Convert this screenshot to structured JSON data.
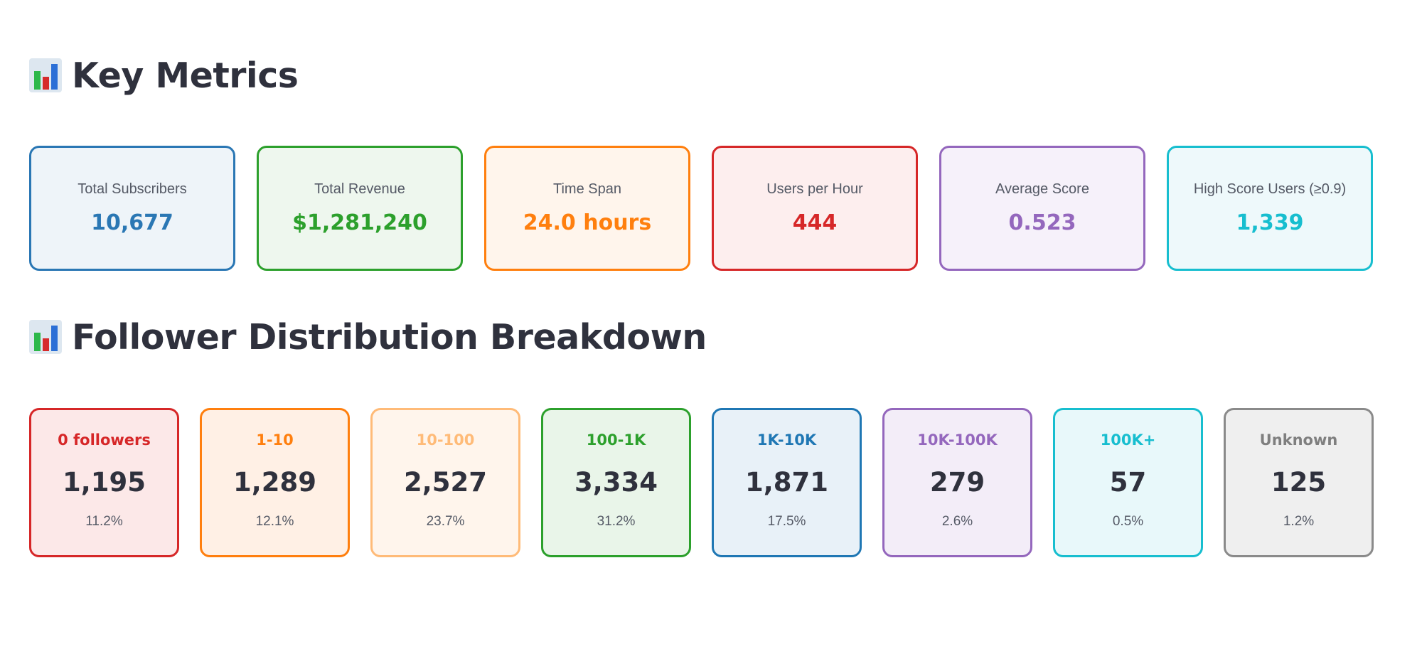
{
  "sections": {
    "key_metrics_title": "Key Metrics",
    "follower_title": "Follower Distribution Breakdown",
    "icon": "bar-chart-icon"
  },
  "metrics": [
    {
      "label": "Total Subscribers",
      "value": "10,677",
      "color": "#2a77b4",
      "bg": "#eef4f9"
    },
    {
      "label": "Total Revenue",
      "value": "$1,281,240",
      "color": "#2ca02c",
      "bg": "#eef7ee"
    },
    {
      "label": "Time Span",
      "value": "24.0 hours",
      "color": "#ff7f0e",
      "bg": "#fff5ec"
    },
    {
      "label": "Users per Hour",
      "value": "444",
      "color": "#d62728",
      "bg": "#fdeeee"
    },
    {
      "label": "Average Score",
      "value": "0.523",
      "color": "#9467bd",
      "bg": "#f6f1fa"
    },
    {
      "label": "High Score Users (≥0.9)",
      "value": "1,339",
      "color": "#17becf",
      "bg": "#eef9fb"
    }
  ],
  "followers": [
    {
      "label": "0 followers",
      "count": "1,195",
      "pct": "11.2%",
      "color": "#d62728",
      "border": "#d62728",
      "bg": "#fce8e8"
    },
    {
      "label": "1-10",
      "count": "1,289",
      "pct": "12.1%",
      "color": "#ff7f0e",
      "border": "#ff7f0e",
      "bg": "#fff0e5"
    },
    {
      "label": "10-100",
      "count": "2,527",
      "pct": "23.7%",
      "color": "#ffbb78",
      "border": "#ffbb78",
      "bg": "#fff5ec"
    },
    {
      "label": "100-1K",
      "count": "3,334",
      "pct": "31.2%",
      "color": "#2ca02c",
      "border": "#2ca02c",
      "bg": "#e9f5e9"
    },
    {
      "label": "1K-10K",
      "count": "1,871",
      "pct": "17.5%",
      "color": "#1f77b4",
      "border": "#1f77b4",
      "bg": "#e8f1f8"
    },
    {
      "label": "10K-100K",
      "count": "279",
      "pct": "2.6%",
      "color": "#9467bd",
      "border": "#9467bd",
      "bg": "#f3edf8"
    },
    {
      "label": "100K+",
      "count": "57",
      "pct": "0.5%",
      "color": "#17becf",
      "border": "#17becf",
      "bg": "#e8f8fa"
    },
    {
      "label": "Unknown",
      "count": "125",
      "pct": "1.2%",
      "color": "#7f7f7f",
      "border": "#8a8a8a",
      "bg": "#efefef"
    }
  ]
}
